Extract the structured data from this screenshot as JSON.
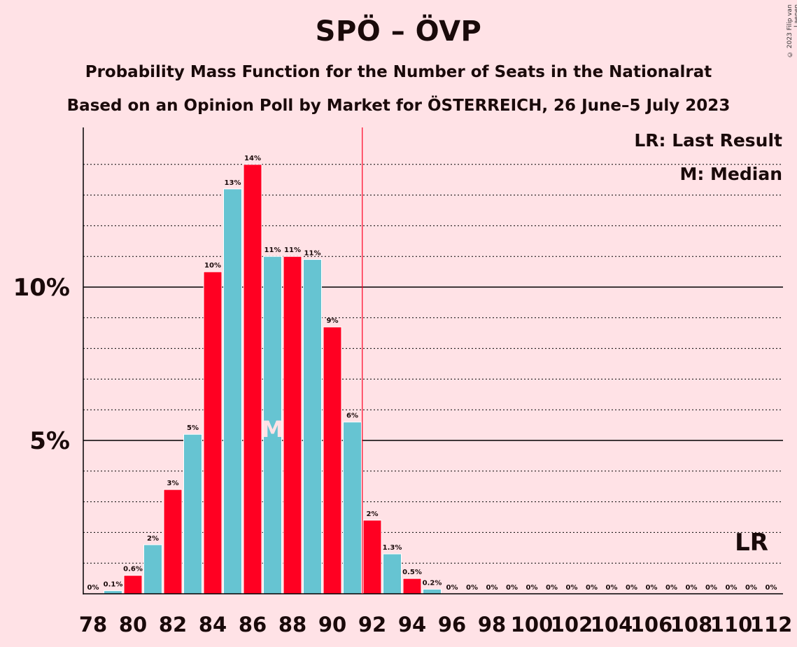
{
  "title": "SPÖ – ÖVP",
  "subtitle1": "Probability Mass Function for the Number of Seats in the Nationalrat",
  "subtitle2": "Based on an Opinion Poll by Market for ÖSTERREICH, 26 June–5 July 2023",
  "copyright": "© 2023 Filip van Laenen",
  "colors": {
    "background": "#ffe2e6",
    "red": "#ff0022",
    "teal": "#66c4d2",
    "median_text": "#ffe2e6",
    "last_result_line": "#ff0022"
  },
  "chart_data": {
    "type": "bar",
    "categories": [
      78,
      79,
      80,
      81,
      82,
      83,
      84,
      85,
      86,
      87,
      88,
      89,
      90,
      91,
      92,
      93,
      94,
      95,
      96,
      97,
      98,
      99,
      100,
      101,
      102,
      103,
      104,
      105,
      106,
      107,
      108,
      109,
      110,
      111,
      112
    ],
    "values": [
      0,
      0.1,
      0.6,
      1.6,
      3.4,
      5.2,
      10.5,
      13.2,
      14,
      11,
      11,
      10.9,
      8.7,
      5.6,
      2.4,
      1.3,
      0.5,
      0.15,
      0,
      0,
      0,
      0,
      0,
      0,
      0,
      0,
      0,
      0,
      0,
      0,
      0,
      0,
      0,
      0,
      0
    ],
    "data_labels": [
      "0%",
      "0.1%",
      "0.6%",
      "2%",
      "3%",
      "5%",
      "10%",
      "13%",
      "14%",
      "11%",
      "11%",
      "11%",
      "9%",
      "6%",
      "2%",
      "1.3%",
      "0.5%",
      "0.2%",
      "0%",
      "0%",
      "0%",
      "0%",
      "0%",
      "0%",
      "0%",
      "0%",
      "0%",
      "0%",
      "0%",
      "0%",
      "0%",
      "0%",
      "0%",
      "0%",
      "0%"
    ],
    "x_tick_labels": [
      "78",
      "80",
      "82",
      "84",
      "86",
      "88",
      "90",
      "92",
      "94",
      "96",
      "98",
      "100",
      "102",
      "104",
      "106",
      "108",
      "110",
      "112"
    ],
    "y_tick_labels": [
      "5%",
      "10%"
    ],
    "ylim": [
      0,
      15.2
    ],
    "median_seats": 87,
    "median_label": "M",
    "last_result_seats": 91.5,
    "last_result_label": "LR",
    "legend": [
      "LR: Last Result",
      "M: Median"
    ],
    "legend_position": "top-right",
    "grid": true
  }
}
